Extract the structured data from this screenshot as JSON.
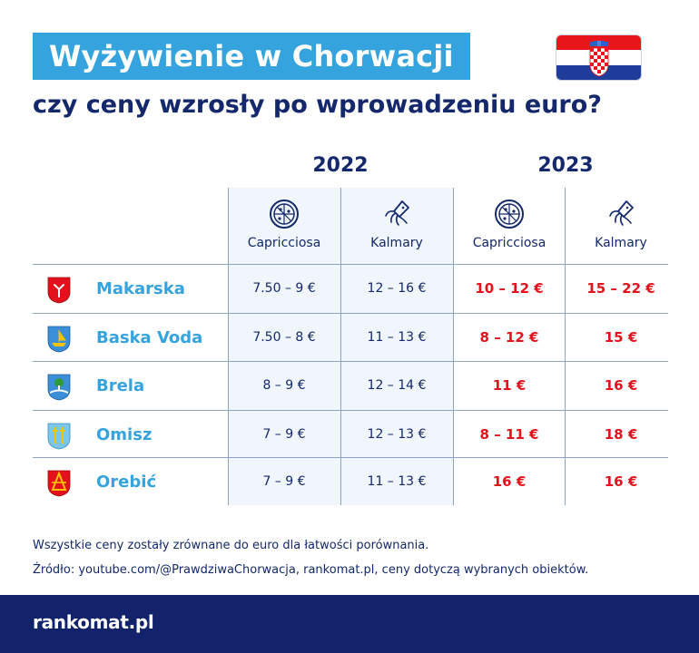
{
  "header": {
    "title": "Wyżywienie w Chorwacji",
    "subtitle": "czy ceny wzrosły po wprowadzeniu euro?",
    "flag_icon": "croatia-flag-icon"
  },
  "years": [
    "2022",
    "2023"
  ],
  "columns": [
    {
      "label": "Capricciosa",
      "icon": "pizza-icon"
    },
    {
      "label": "Kalmary",
      "icon": "squid-icon"
    },
    {
      "label": "Capricciosa",
      "icon": "pizza-icon"
    },
    {
      "label": "Kalmary",
      "icon": "squid-icon"
    }
  ],
  "rows": [
    {
      "city": "Makarska",
      "crest": "makarska-crest-icon",
      "cap_2022": "7.50 – 9 €",
      "kal_2022": "12 – 16 €",
      "cap_2023": "10 – 12 €",
      "kal_2023": "15 – 22 €"
    },
    {
      "city": "Baska Voda",
      "crest": "baska-voda-crest-icon",
      "cap_2022": "7.50 – 8 €",
      "kal_2022": "11 – 13 €",
      "cap_2023": "8 – 12 €",
      "kal_2023": "15 €"
    },
    {
      "city": "Brela",
      "crest": "brela-crest-icon",
      "cap_2022": "8 – 9 €",
      "kal_2022": "12 – 14 €",
      "cap_2023": "11 €",
      "kal_2023": "16 €"
    },
    {
      "city": "Omisz",
      "crest": "omisz-crest-icon",
      "cap_2022": "7 – 9 €",
      "kal_2022": "12 – 13 €",
      "cap_2023": "8 – 11 €",
      "kal_2023": "18 €"
    },
    {
      "city": "Orebić",
      "crest": "orebic-crest-icon",
      "cap_2022": "7 – 9 €",
      "kal_2022": "11 – 13 €",
      "cap_2023": "16 €",
      "kal_2023": "16 €"
    }
  ],
  "notes": {
    "note1": "Wszystkie ceny zostały zrównane do euro dla łatwości porównania.",
    "note2": "Źródło: youtube.com/@PrawdziwaChorwacja, rankomat.pl, ceny dotyczą wybranych obiektów."
  },
  "footer": {
    "logo": "rankomat.pl"
  },
  "colors": {
    "accent_blue": "#35a3dd",
    "navy": "#14286b",
    "price_red": "#e3111b",
    "footer_bg": "#13236b"
  }
}
